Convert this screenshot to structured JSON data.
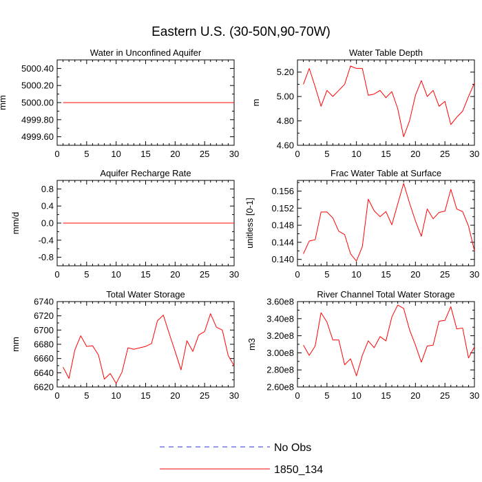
{
  "figure_title": "Eastern U.S. (30-50N,90-70W)",
  "legend": {
    "placement": "bottom-center",
    "entries": [
      {
        "label": "No Obs",
        "color": "#2b2bd6",
        "style": "dashed"
      },
      {
        "label": "1850_134",
        "color": "#ff0000",
        "style": "solid"
      }
    ]
  },
  "chart_data": [
    {
      "type": "line",
      "title": "Water in Unconfined Aquifer",
      "xlabel": "",
      "ylabel": "mm",
      "xlim": [
        0,
        30
      ],
      "ylim": [
        4999.5,
        5000.5
      ],
      "xticks": [
        0,
        5,
        10,
        15,
        20,
        25,
        30
      ],
      "xtick_labels": [
        "0",
        "5",
        "10",
        "15",
        "20",
        "25",
        "30"
      ],
      "yticks": [
        4999.6,
        4999.8,
        5000.0,
        5000.2,
        5000.4
      ],
      "ytick_labels": [
        "4999.60",
        "4999.80",
        "5000.00",
        "5000.20",
        "5000.40"
      ],
      "grid": false,
      "series": [
        {
          "name": "1850_134",
          "color": "#ff0000",
          "x": [
            1,
            30
          ],
          "y": [
            5000.0,
            5000.0
          ]
        }
      ]
    },
    {
      "type": "line",
      "title": "Water Table Depth",
      "xlabel": "",
      "ylabel": "m",
      "xlim": [
        0,
        30
      ],
      "ylim": [
        4.6,
        5.3
      ],
      "xticks": [
        0,
        5,
        10,
        15,
        20,
        25,
        30
      ],
      "xtick_labels": [
        "0",
        "5",
        "10",
        "15",
        "20",
        "25",
        "30"
      ],
      "yticks": [
        4.6,
        4.8,
        5.0,
        5.2
      ],
      "ytick_labels": [
        "4.60",
        "4.80",
        "5.00",
        "5.20"
      ],
      "grid": false,
      "series": [
        {
          "name": "1850_134",
          "color": "#ff0000",
          "x": [
            1,
            2,
            3,
            4,
            5,
            6,
            7,
            8,
            9,
            10,
            11,
            12,
            13,
            14,
            15,
            16,
            17,
            18,
            19,
            20,
            21,
            22,
            23,
            24,
            25,
            26,
            27,
            28,
            29,
            30
          ],
          "y": [
            5.1,
            5.23,
            5.08,
            4.92,
            5.05,
            5.0,
            5.05,
            5.1,
            5.25,
            5.23,
            5.23,
            5.01,
            5.02,
            5.05,
            4.99,
            5.04,
            4.9,
            4.67,
            4.8,
            5.01,
            5.13,
            5.0,
            5.05,
            4.92,
            4.96,
            4.77,
            4.83,
            4.88,
            5.0,
            5.11
          ]
        }
      ]
    },
    {
      "type": "line",
      "title": "Aquifer Recharge Rate",
      "xlabel": "",
      "ylabel": "mm/d",
      "xlim": [
        0,
        30
      ],
      "ylim": [
        -1.0,
        1.0
      ],
      "xticks": [
        0,
        5,
        10,
        15,
        20,
        25,
        30
      ],
      "xtick_labels": [
        "0",
        "5",
        "10",
        "15",
        "20",
        "25",
        "30"
      ],
      "yticks": [
        -0.8,
        -0.4,
        0.0,
        0.4,
        0.8
      ],
      "ytick_labels": [
        "-0.8",
        "-0.4",
        "0.0",
        "0.4",
        "0.8"
      ],
      "grid": false,
      "series": [
        {
          "name": "1850_134",
          "color": "#ff0000",
          "x": [
            1,
            30
          ],
          "y": [
            0.0,
            0.0
          ]
        }
      ]
    },
    {
      "type": "line",
      "title": "Frac Water Table at Surface",
      "xlabel": "",
      "ylabel": "unitless [0-1]",
      "xlim": [
        0,
        30
      ],
      "ylim": [
        0.1385,
        0.1585
      ],
      "xticks": [
        0,
        5,
        10,
        15,
        20,
        25,
        30
      ],
      "xtick_labels": [
        "0",
        "5",
        "10",
        "15",
        "20",
        "25",
        "30"
      ],
      "yticks": [
        0.14,
        0.144,
        0.148,
        0.152,
        0.156
      ],
      "ytick_labels": [
        "0.140",
        "0.144",
        "0.148",
        "0.152",
        "0.156"
      ],
      "grid": false,
      "series": [
        {
          "name": "1850_134",
          "color": "#ff0000",
          "x": [
            1,
            2,
            3,
            4,
            5,
            6,
            7,
            8,
            9,
            10,
            11,
            12,
            13,
            14,
            15,
            16,
            17,
            18,
            19,
            20,
            21,
            22,
            23,
            24,
            25,
            26,
            27,
            28,
            29,
            30
          ],
          "y": [
            0.1413,
            0.1443,
            0.1446,
            0.1511,
            0.1511,
            0.1497,
            0.1466,
            0.1458,
            0.1413,
            0.1396,
            0.143,
            0.1541,
            0.1514,
            0.15,
            0.1512,
            0.1481,
            0.153,
            0.1578,
            0.1532,
            0.149,
            0.1454,
            0.1518,
            0.1495,
            0.151,
            0.1513,
            0.1564,
            0.1518,
            0.1512,
            0.1478,
            0.142
          ]
        }
      ]
    },
    {
      "type": "line",
      "title": "Total Water Storage",
      "xlabel": "",
      "ylabel": "mm",
      "xlim": [
        0,
        30
      ],
      "ylim": [
        6620,
        6740
      ],
      "xticks": [
        0,
        5,
        10,
        15,
        20,
        25,
        30
      ],
      "xtick_labels": [
        "0",
        "5",
        "10",
        "15",
        "20",
        "25",
        "30"
      ],
      "yticks": [
        6620,
        6640,
        6660,
        6680,
        6700,
        6720,
        6740
      ],
      "ytick_labels": [
        "6620",
        "6640",
        "6660",
        "6680",
        "6700",
        "6720",
        "6740"
      ],
      "grid": false,
      "series": [
        {
          "name": "1850_134",
          "color": "#ff0000",
          "x": [
            1,
            2,
            3,
            4,
            5,
            6,
            7,
            8,
            9,
            10,
            11,
            12,
            13,
            14,
            15,
            16,
            17,
            18,
            19,
            20,
            21,
            22,
            23,
            24,
            25,
            26,
            27,
            28,
            29,
            30
          ],
          "y": [
            6648,
            6632,
            6672,
            6692,
            6677,
            6678,
            6665,
            6631,
            6639,
            6625,
            6641,
            6675,
            6673,
            6675,
            6677,
            6681,
            6713,
            6721,
            6695,
            6670,
            6644,
            6685,
            6670,
            6693,
            6698,
            6723,
            6704,
            6700,
            6664,
            6650
          ]
        }
      ]
    },
    {
      "type": "line",
      "title": "River Channel Total Water Storage",
      "xlabel": "",
      "ylabel": "m3",
      "xlim": [
        0,
        30
      ],
      "ylim": [
        260000000.0,
        360000000.0
      ],
      "xticks": [
        0,
        5,
        10,
        15,
        20,
        25,
        30
      ],
      "xtick_labels": [
        "0",
        "5",
        "10",
        "15",
        "20",
        "25",
        "30"
      ],
      "yticks": [
        260000000.0,
        280000000.0,
        300000000.0,
        320000000.0,
        340000000.0,
        360000000.0
      ],
      "ytick_labels": [
        "2.60e8",
        "2.80e8",
        "3.00e8",
        "3.20e8",
        "3.40e8",
        "3.60e8"
      ],
      "grid": false,
      "series": [
        {
          "name": "1850_134",
          "color": "#ff0000",
          "x": [
            1,
            2,
            3,
            4,
            5,
            6,
            7,
            8,
            9,
            10,
            11,
            12,
            13,
            14,
            15,
            16,
            17,
            18,
            19,
            20,
            21,
            22,
            23,
            24,
            25,
            26,
            27,
            28,
            29,
            30
          ],
          "y": [
            309000000.0,
            297000000.0,
            308000000.0,
            347000000.0,
            336000000.0,
            315000000.0,
            315000000.0,
            286000000.0,
            293000000.0,
            273000000.0,
            297000000.0,
            314000000.0,
            306000000.0,
            319000000.0,
            314000000.0,
            342000000.0,
            356000000.0,
            352000000.0,
            327000000.0,
            309000000.0,
            289000000.0,
            308000000.0,
            309000000.0,
            337000000.0,
            338000000.0,
            354000000.0,
            328000000.0,
            329000000.0,
            294000000.0,
            307000000.0
          ]
        }
      ]
    }
  ]
}
